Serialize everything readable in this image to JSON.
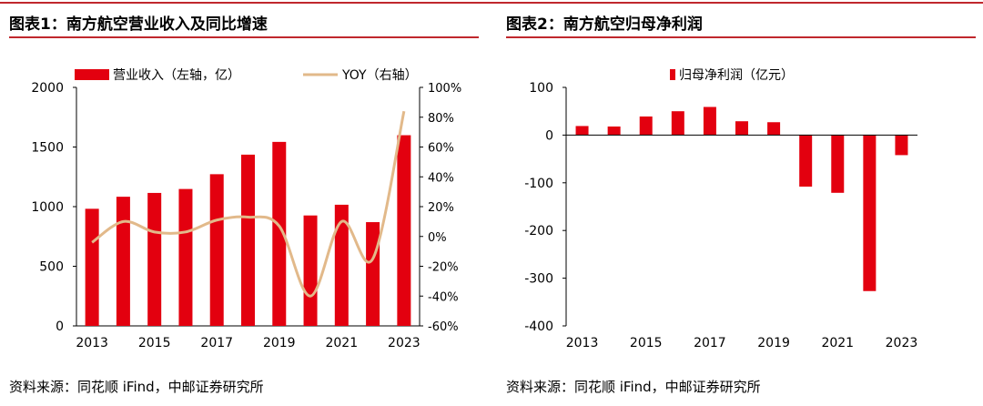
{
  "colors": {
    "bar": "#e3000f",
    "line": "#e2b98a",
    "accent": "#c0272d"
  },
  "panels": [
    {
      "title": "图表1：南方航空营业收入及同比增速",
      "source": "资料来源：同花顺 iFind，中邮证券研究所"
    },
    {
      "title": "图表2：南方航空归母净利润",
      "source": "资料来源：同花顺 iFind，中邮证券研究所"
    }
  ],
  "chart_data": [
    {
      "type": "bar",
      "title": "南方航空营业收入及同比增速",
      "categories": [
        "2013",
        "2014",
        "2015",
        "2016",
        "2017",
        "2018",
        "2019",
        "2020",
        "2021",
        "2022",
        "2023"
      ],
      "xtick_labels": [
        "2013",
        "",
        "2015",
        "",
        "2017",
        "",
        "2019",
        "",
        "2021",
        "",
        "2023"
      ],
      "series": [
        {
          "name": "营业收入（左轴，亿）",
          "type": "bar",
          "axis": "left",
          "values": [
            982,
            1083,
            1115,
            1148,
            1272,
            1436,
            1543,
            926,
            1016,
            870,
            1599
          ]
        },
        {
          "name": "YOY（右轴）",
          "type": "line",
          "axis": "right",
          "values": [
            -4,
            10,
            3,
            3,
            11,
            13,
            7,
            -40,
            10,
            -15,
            84
          ]
        }
      ],
      "ylim_left": [
        0,
        2000
      ],
      "yticks_left": [
        0,
        500,
        1000,
        1500,
        2000
      ],
      "ylim_right": [
        -60,
        100
      ],
      "yticks_right": [
        "-60%",
        "-40%",
        "-20%",
        "0%",
        "20%",
        "40%",
        "60%",
        "80%",
        "100%"
      ],
      "legend": "top"
    },
    {
      "type": "bar",
      "title": "南方航空归母净利润",
      "categories": [
        "2013",
        "2014",
        "2015",
        "2016",
        "2017",
        "2018",
        "2019",
        "2020",
        "2021",
        "2022",
        "2023"
      ],
      "xtick_labels": [
        "2013",
        "",
        "2015",
        "",
        "2017",
        "",
        "2019",
        "",
        "2021",
        "",
        "2023"
      ],
      "series": [
        {
          "name": "归母净利润（亿元）",
          "type": "bar",
          "values": [
            19,
            18,
            39,
            50,
            59,
            29,
            27,
            -108,
            -121,
            -327,
            -42
          ]
        }
      ],
      "ylim": [
        -400,
        100
      ],
      "yticks": [
        -400,
        -300,
        -200,
        -100,
        0,
        100
      ],
      "legend": "top"
    }
  ]
}
